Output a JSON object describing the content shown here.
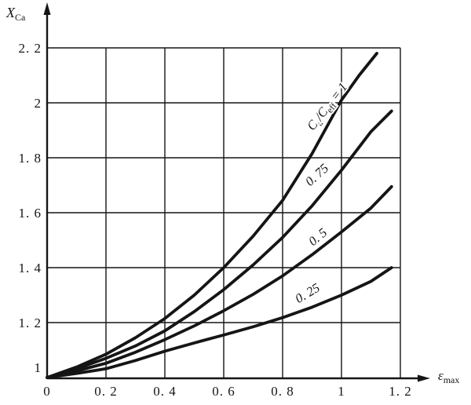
{
  "figure": {
    "background": "#ffffff",
    "ink": "#151515"
  },
  "chart_data": {
    "type": "line",
    "title": "",
    "grid": "on",
    "legend": "inline-rotated-labels",
    "xlim": [
      0,
      1.2
    ],
    "ylim": [
      1,
      2.2
    ],
    "xlabel": {
      "parts": [
        {
          "t": "ε",
          "italic": true
        },
        {
          "t": "max",
          "sub": true
        }
      ]
    },
    "ylabel": {
      "parts": [
        {
          "t": "X",
          "italic": true
        },
        {
          "t": "Ca",
          "sub": true
        }
      ]
    },
    "x_ticks": [
      {
        "value": 0,
        "label": "0"
      },
      {
        "value": 0.2,
        "label": "0. 2"
      },
      {
        "value": 0.4,
        "label": "0. 4"
      },
      {
        "value": 0.6,
        "label": "0. 6"
      },
      {
        "value": 0.8,
        "label": "0. 8"
      },
      {
        "value": 1,
        "label": "1"
      },
      {
        "value": 1.2,
        "label": "1. 2"
      }
    ],
    "y_ticks": [
      {
        "value": 1,
        "label": "1"
      },
      {
        "value": 1.2,
        "label": "1. 2"
      },
      {
        "value": 1.4,
        "label": "1. 4"
      },
      {
        "value": 1.6,
        "label": "1. 6"
      },
      {
        "value": 1.8,
        "label": "1. 8"
      },
      {
        "value": 2,
        "label": "2"
      },
      {
        "value": 2.2,
        "label": "2. 2"
      }
    ],
    "series": [
      {
        "id": "ratio-1",
        "name": "Ca/Ceff = 1",
        "points": [
          [
            0,
            1
          ],
          [
            0.1,
            1.038
          ],
          [
            0.2,
            1.085
          ],
          [
            0.3,
            1.145
          ],
          [
            0.4,
            1.215
          ],
          [
            0.5,
            1.3
          ],
          [
            0.6,
            1.4
          ],
          [
            0.7,
            1.515
          ],
          [
            0.8,
            1.645
          ],
          [
            0.9,
            1.815
          ],
          [
            1.0,
            2.01
          ],
          [
            1.06,
            2.1
          ],
          [
            1.12,
            2.18
          ]
        ]
      },
      {
        "id": "ratio-0.75",
        "name": "Ca/Ceff = 0.75",
        "points": [
          [
            0,
            1
          ],
          [
            0.1,
            1.032
          ],
          [
            0.2,
            1.07
          ],
          [
            0.3,
            1.115
          ],
          [
            0.4,
            1.17
          ],
          [
            0.5,
            1.24
          ],
          [
            0.6,
            1.32
          ],
          [
            0.7,
            1.41
          ],
          [
            0.8,
            1.51
          ],
          [
            0.9,
            1.625
          ],
          [
            1.0,
            1.755
          ],
          [
            1.1,
            1.895
          ],
          [
            1.17,
            1.97
          ]
        ]
      },
      {
        "id": "ratio-0.5",
        "name": "Ca/Ceff = 0.5",
        "points": [
          [
            0,
            1
          ],
          [
            0.1,
            1.024
          ],
          [
            0.2,
            1.052
          ],
          [
            0.3,
            1.092
          ],
          [
            0.4,
            1.138
          ],
          [
            0.5,
            1.188
          ],
          [
            0.6,
            1.243
          ],
          [
            0.7,
            1.303
          ],
          [
            0.8,
            1.37
          ],
          [
            0.9,
            1.447
          ],
          [
            1.0,
            1.53
          ],
          [
            1.1,
            1.617
          ],
          [
            1.17,
            1.695
          ]
        ]
      },
      {
        "id": "ratio-0.25",
        "name": "Ca/Ceff = 0.25",
        "points": [
          [
            0,
            1
          ],
          [
            0.1,
            1.015
          ],
          [
            0.2,
            1.032
          ],
          [
            0.3,
            1.062
          ],
          [
            0.4,
            1.096
          ],
          [
            0.5,
            1.126
          ],
          [
            0.6,
            1.155
          ],
          [
            0.7,
            1.185
          ],
          [
            0.8,
            1.218
          ],
          [
            0.9,
            1.256
          ],
          [
            1.0,
            1.3
          ],
          [
            1.1,
            1.35
          ],
          [
            1.17,
            1.4
          ]
        ]
      }
    ],
    "annotations": [
      {
        "id": "label-ratio-1",
        "x": 0.952,
        "y": 1.986,
        "rotation": -52,
        "parts": [
          {
            "t": "C"
          },
          {
            "t": "a",
            "sub": true
          },
          {
            "t": "/C"
          },
          {
            "t": "eff",
            "sub": true
          },
          {
            "t": " = 1"
          }
        ]
      },
      {
        "id": "label-ratio-0.75",
        "x": 0.917,
        "y": 1.737,
        "rotation": -42,
        "parts": [
          {
            "t": "0. 75"
          }
        ]
      },
      {
        "id": "label-ratio-0.5",
        "x": 0.92,
        "y": 1.511,
        "rotation": -40,
        "parts": [
          {
            "t": "0. 5"
          }
        ]
      },
      {
        "id": "label-ratio-0.25",
        "x": 0.885,
        "y": 1.306,
        "rotation": -31,
        "parts": [
          {
            "t": "0. 25"
          }
        ]
      }
    ]
  }
}
